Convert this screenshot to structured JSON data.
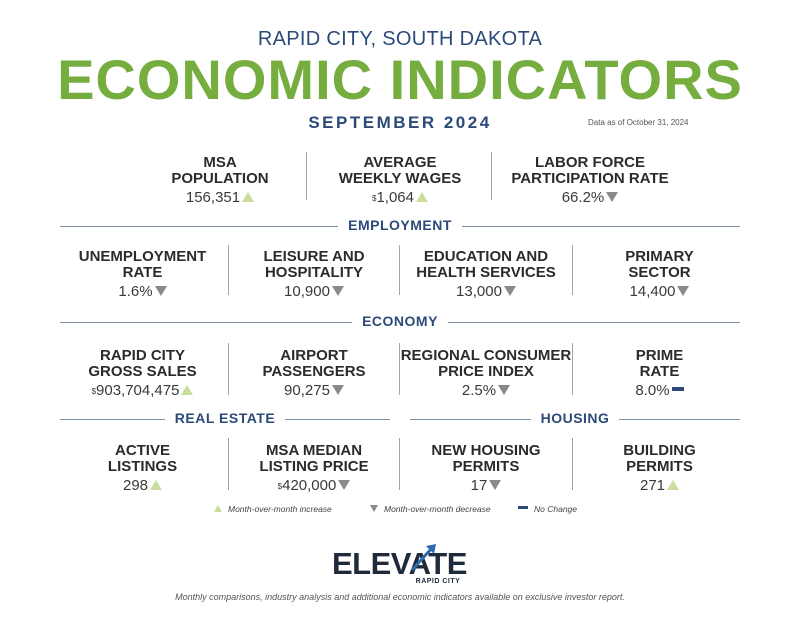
{
  "header": {
    "kicker": "RAPID CITY, SOUTH DAKOTA",
    "title": "ECONOMIC INDICATORS",
    "month": "SEPTEMBER 2024",
    "as_of": "Data as of October 31, 2024"
  },
  "top": [
    {
      "label1": "MSA",
      "label2": "POPULATION",
      "prefix": "",
      "value": "156,351",
      "trend": "up"
    },
    {
      "label1": "AVERAGE",
      "label2": "WEEKLY WAGES",
      "prefix": "$",
      "value": "1,064",
      "trend": "up"
    },
    {
      "label1": "LABOR FORCE",
      "label2": "PARTICIPATION RATE",
      "prefix": "",
      "value": "66.2%",
      "trend": "down"
    }
  ],
  "employment": {
    "heading": "EMPLOYMENT",
    "items": [
      {
        "label1": "UNEMPLOYMENT",
        "label2": "RATE",
        "prefix": "",
        "value": "1.6%",
        "trend": "down"
      },
      {
        "label1": "LEISURE AND",
        "label2": "HOSPITALITY",
        "prefix": "",
        "value": "10,900",
        "trend": "down"
      },
      {
        "label1": "EDUCATION AND",
        "label2": "HEALTH SERVICES",
        "prefix": "",
        "value": "13,000",
        "trend": "down"
      },
      {
        "label1": "PRIMARY",
        "label2": "SECTOR",
        "prefix": "",
        "value": "14,400",
        "trend": "down"
      }
    ]
  },
  "economy": {
    "heading": "ECONOMY",
    "items": [
      {
        "label1": "RAPID CITY",
        "label2": "GROSS SALES",
        "prefix": "$",
        "value": "903,704,475",
        "trend": "up"
      },
      {
        "label1": "AIRPORT",
        "label2": "PASSENGERS",
        "prefix": "",
        "value": "90,275",
        "trend": "down"
      },
      {
        "label1": "REGIONAL CONSUMER",
        "label2": "PRICE INDEX",
        "prefix": "",
        "value": "2.5%",
        "trend": "down"
      },
      {
        "label1": "PRIME",
        "label2": "RATE",
        "prefix": "",
        "value": "8.0%",
        "trend": "flat"
      }
    ]
  },
  "real_estate": {
    "heading": "REAL ESTATE",
    "items": [
      {
        "label1": "ACTIVE",
        "label2": "LISTINGS",
        "prefix": "",
        "value": "298",
        "trend": "up"
      },
      {
        "label1": "MSA MEDIAN",
        "label2": "LISTING PRICE",
        "prefix": "$",
        "value": "420,000",
        "trend": "down"
      }
    ]
  },
  "housing": {
    "heading": "HOUSING",
    "items": [
      {
        "label1": "NEW HOUSING",
        "label2": "PERMITS",
        "prefix": "",
        "value": "17",
        "trend": "down"
      },
      {
        "label1": "BUILDING",
        "label2": "PERMITS",
        "prefix": "",
        "value": "271",
        "trend": "up"
      }
    ]
  },
  "legend": {
    "increase": "Month-over-month increase",
    "decrease": "Month-over-month decrease",
    "no_change": "No Change"
  },
  "colors": {
    "navy": "#2c4a78",
    "green": "#75ad3f",
    "up": "#c9de9e",
    "down": "#8a8a8a"
  },
  "logo": {
    "word": "ELEVATE",
    "sub": "RAPID CITY"
  },
  "footer": "Monthly comparisons, industry analysis and additional economic indicators available on exclusive investor report."
}
